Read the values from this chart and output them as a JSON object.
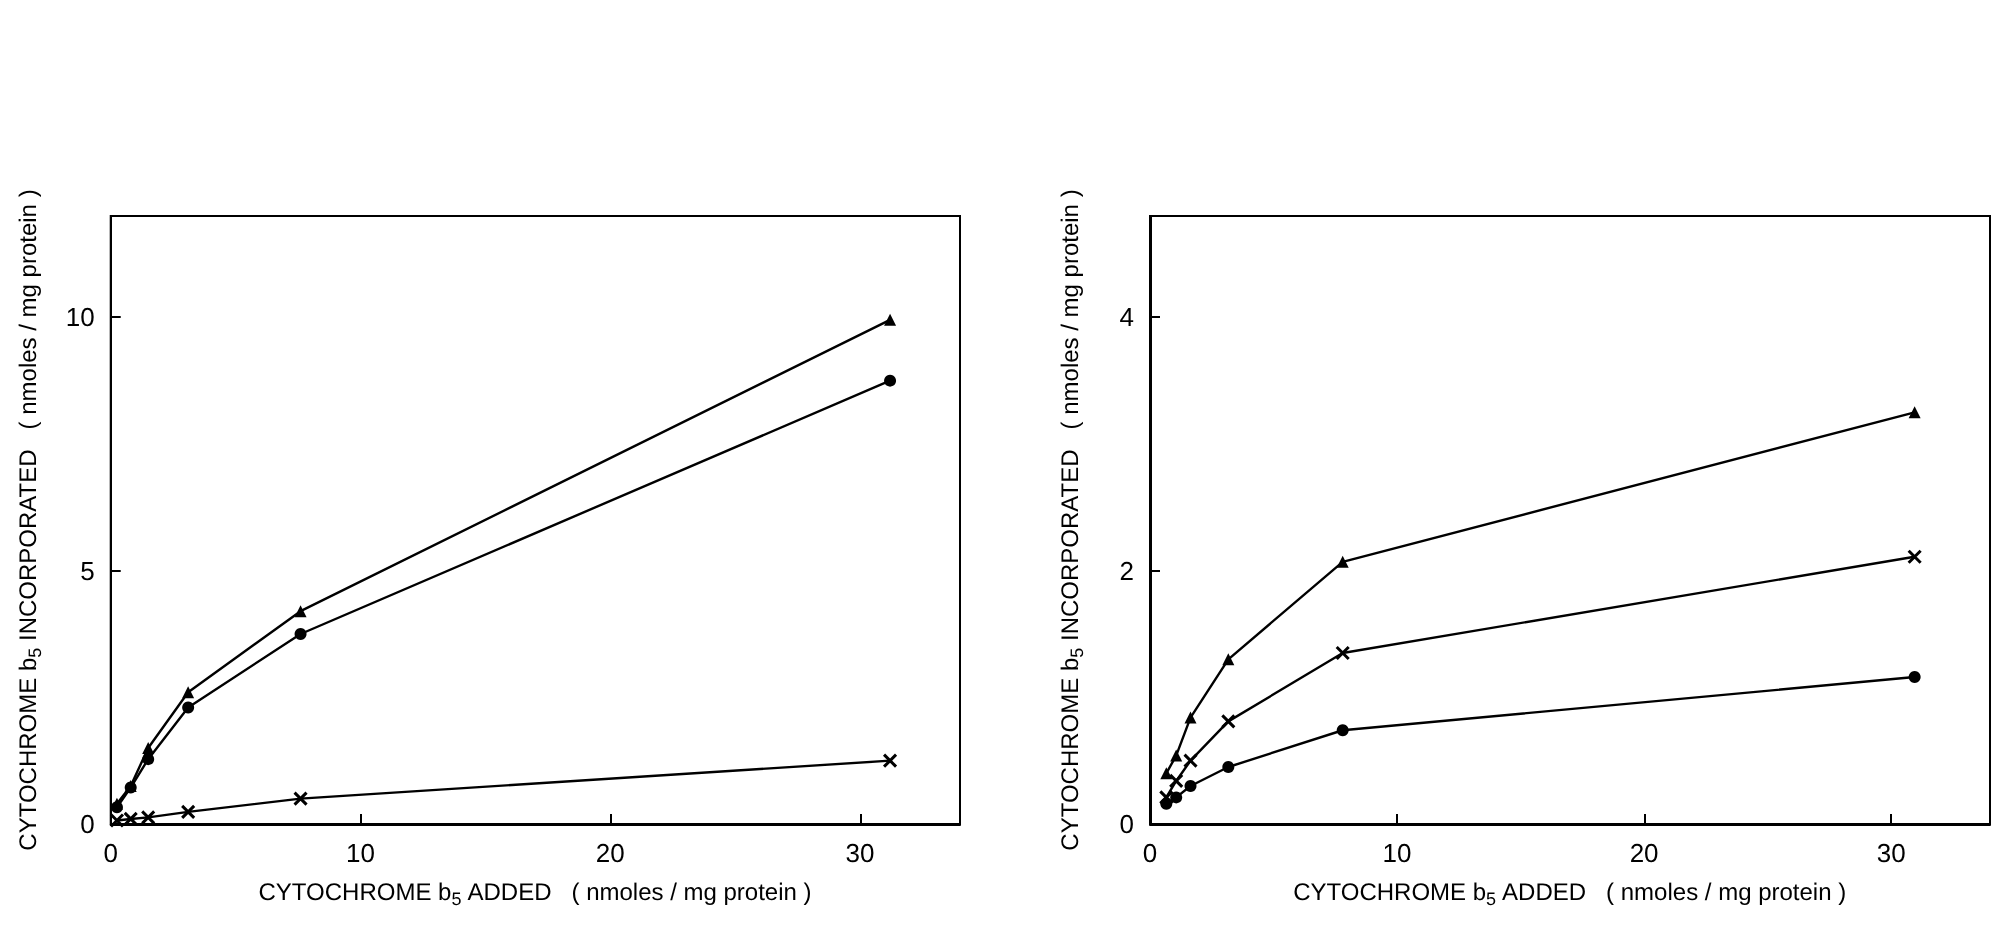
{
  "chart_data": [
    {
      "type": "line",
      "xlabel": "CYTOCHROME b$_{5}$ ADDED   ( nmoles / mg protein )",
      "ylabel": "CYTOCHROME b$_{5}$ INCORPORATED   ( nmoles / mg protein )",
      "xlim": [
        0,
        34
      ],
      "ylim": [
        0,
        12
      ],
      "xticks": [
        0,
        10,
        20,
        30
      ],
      "yticks": [
        0,
        5,
        10
      ],
      "line_style": "solid",
      "series": [
        {
          "color": "#000000",
          "marker": "triangle",
          "x": [
            0.25,
            0.8,
            1.5,
            3.1,
            7.6,
            31.2
          ],
          "values": [
            0.4,
            0.75,
            1.5,
            2.6,
            4.2,
            9.95
          ]
        },
        {
          "color": "#000000",
          "marker": "circle",
          "x": [
            0.25,
            0.8,
            1.5,
            3.1,
            7.6,
            31.2
          ],
          "values": [
            0.33,
            0.72,
            1.28,
            2.3,
            3.75,
            8.75
          ]
        },
        {
          "color": "#000000",
          "marker": "cross",
          "x": [
            0.25,
            0.8,
            1.5,
            3.1,
            7.6,
            31.2
          ],
          "values": [
            0.07,
            0.1,
            0.13,
            0.24,
            0.5,
            1.25
          ]
        }
      ]
    },
    {
      "type": "line",
      "xlabel": "CYTOCHROME b$_{5}$ ADDED   ( nmoles / mg protein )",
      "ylabel": "CYTOCHROME b$_{5}$ INCORPORATED   ( nmoles / mg protein )",
      "xlim": [
        0,
        34
      ],
      "ylim": [
        0,
        4.8
      ],
      "xticks": [
        0,
        10,
        20,
        30
      ],
      "yticks": [
        0,
        2,
        4
      ],
      "line_style": "solid",
      "series": [
        {
          "color": "#000000",
          "marker": "triangle",
          "x": [
            0.66,
            1.06,
            1.64,
            3.17,
            7.8,
            30.95
          ],
          "values": [
            0.4,
            0.54,
            0.84,
            1.3,
            2.07,
            3.25
          ]
        },
        {
          "color": "#000000",
          "marker": "cross",
          "x": [
            0.66,
            1.06,
            1.64,
            3.17,
            7.8,
            30.95
          ],
          "values": [
            0.21,
            0.34,
            0.5,
            0.81,
            1.35,
            2.11
          ]
        },
        {
          "color": "#000000",
          "marker": "circle",
          "x": [
            0.66,
            1.06,
            1.64,
            3.17,
            7.8,
            30.95
          ],
          "values": [
            0.16,
            0.21,
            0.3,
            0.45,
            0.74,
            1.16
          ]
        }
      ]
    }
  ]
}
